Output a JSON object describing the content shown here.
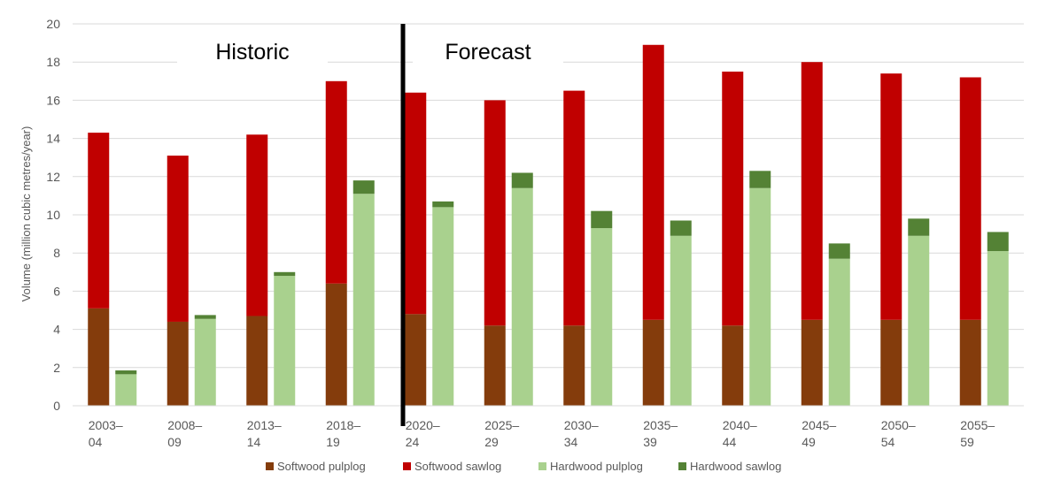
{
  "chart_data": {
    "type": "bar",
    "stacked": true,
    "categories": [
      [
        "2003–",
        "04"
      ],
      [
        "2008–",
        "09"
      ],
      [
        "2013–",
        "14"
      ],
      [
        "2018–",
        "19"
      ],
      [
        "2020–",
        "24"
      ],
      [
        "2025–",
        "29"
      ],
      [
        "2030–",
        "34"
      ],
      [
        "2035–",
        "39"
      ],
      [
        "2040–",
        "44"
      ],
      [
        "2045–",
        "49"
      ],
      [
        "2050–",
        "54"
      ],
      [
        "2055–",
        "59"
      ]
    ],
    "groups": [
      {
        "stack": "softwood",
        "series": [
          {
            "name": "Softwood pulplog",
            "color": "#843c0c",
            "values": [
              5.1,
              4.4,
              4.7,
              6.4,
              4.8,
              4.2,
              4.2,
              4.5,
              4.2,
              4.5,
              4.5,
              4.5
            ]
          },
          {
            "name": "Softwood sawlog",
            "color": "#c00000",
            "values": [
              9.2,
              8.7,
              9.5,
              10.6,
              11.6,
              11.8,
              12.3,
              14.4,
              13.3,
              13.5,
              12.9,
              12.7
            ]
          }
        ]
      },
      {
        "stack": "hardwood",
        "series": [
          {
            "name": "Hardwood pulplog",
            "color": "#a9d18e",
            "values": [
              1.65,
              4.55,
              6.8,
              11.1,
              10.4,
              11.4,
              9.3,
              8.9,
              11.4,
              7.7,
              8.9,
              8.1
            ]
          },
          {
            "name": "Hardwood sawlog",
            "color": "#548235",
            "values": [
              0.2,
              0.2,
              0.2,
              0.7,
              0.3,
              0.8,
              0.9,
              0.8,
              0.9,
              0.8,
              0.9,
              1.0
            ]
          }
        ]
      }
    ],
    "legend_order": [
      "Softwood pulplog",
      "Softwood sawlog",
      "Hardwood pulplog",
      "Hardwood sawlog"
    ],
    "ylabel": "Volume (million cubic metres/year)",
    "xlabel": "",
    "ylim": [
      0,
      20
    ],
    "yticks": [
      0,
      2,
      4,
      6,
      8,
      10,
      12,
      14,
      16,
      18,
      20
    ],
    "grid": true,
    "legend_position": "bottom",
    "annotations": {
      "historic": "Historic",
      "forecast": "Forecast"
    },
    "divider_between": [
      3,
      4
    ]
  }
}
